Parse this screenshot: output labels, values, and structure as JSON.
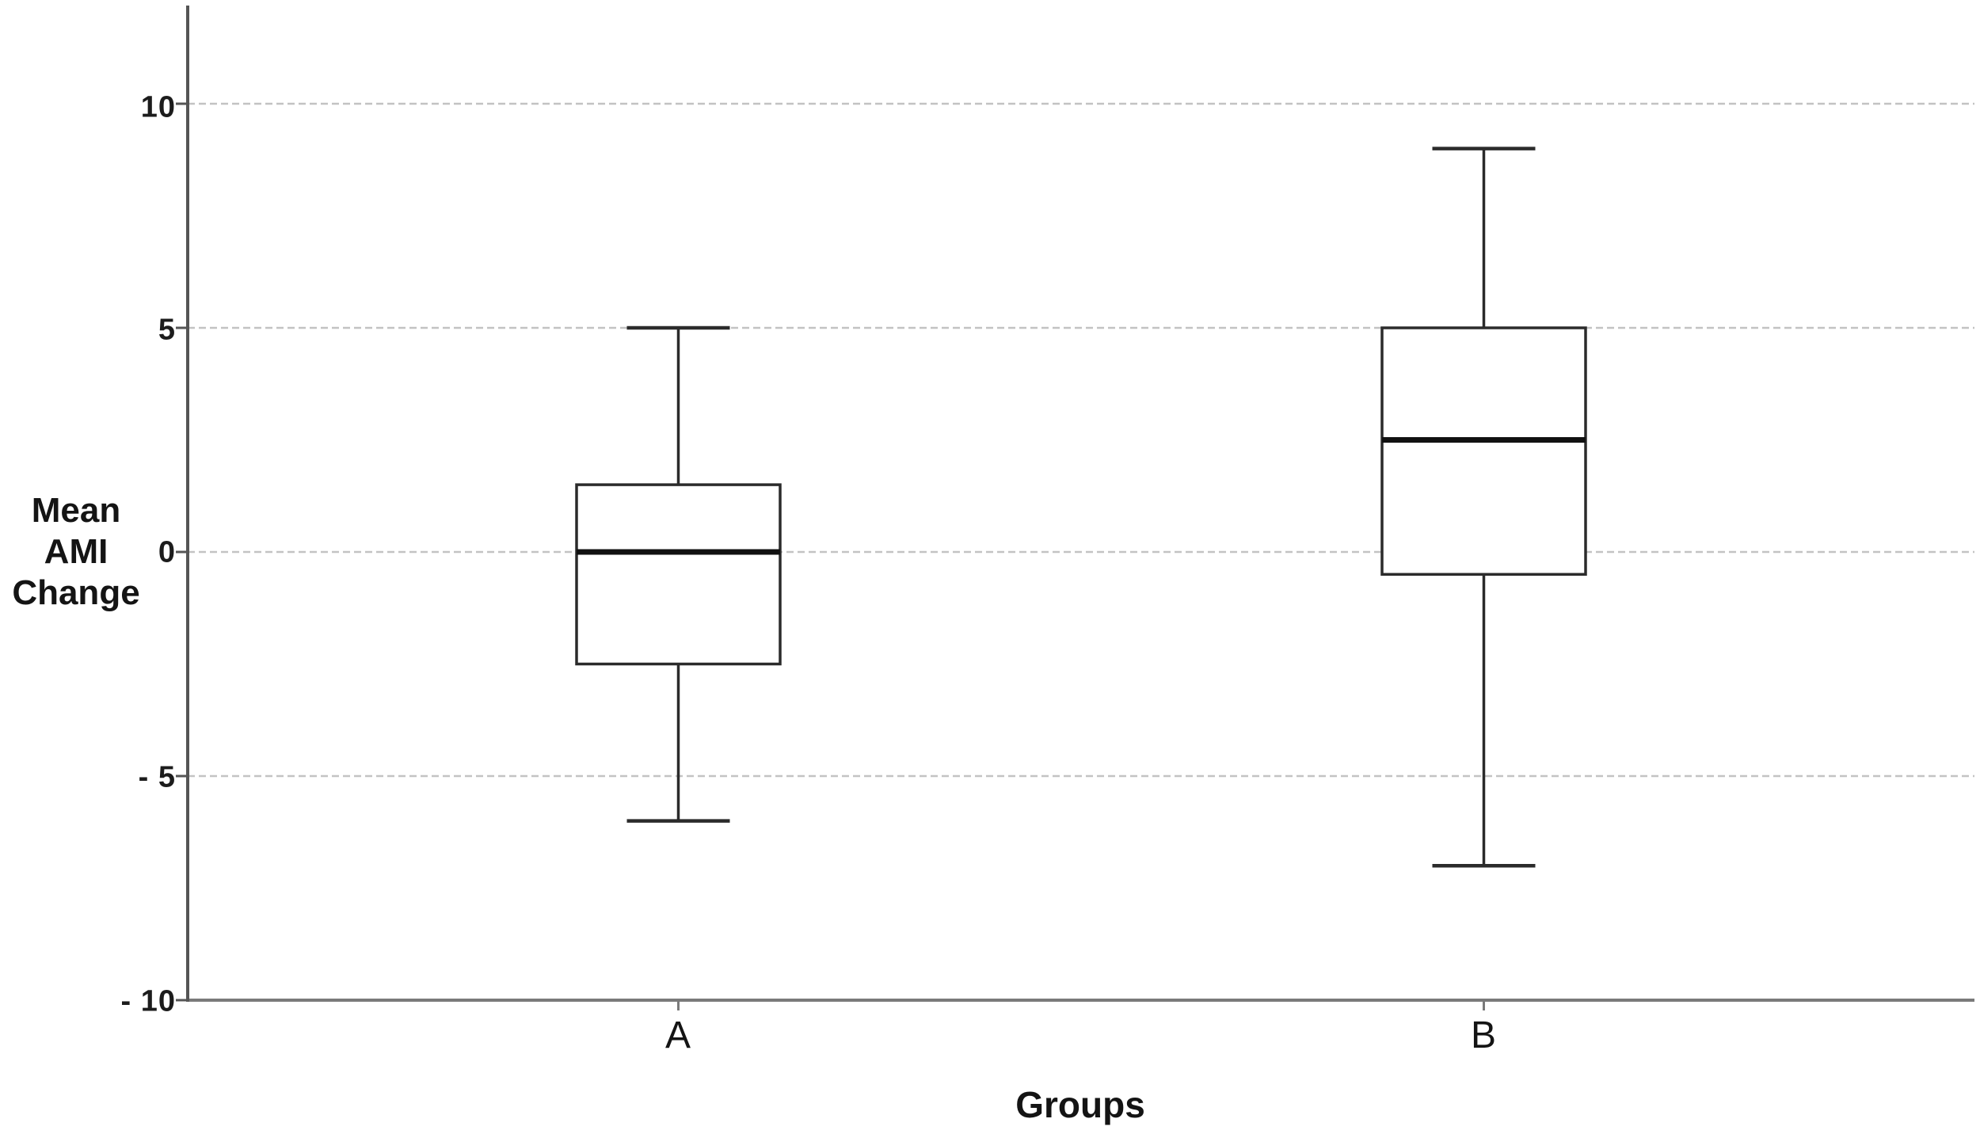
{
  "chart_data": {
    "type": "boxplot",
    "title": "",
    "xlabel": "Groups",
    "ylabel": "Mean AMI Change",
    "ylabel_lines": [
      "Mean",
      "AMI",
      "Change"
    ],
    "categories": [
      "A",
      "B"
    ],
    "y_ticks": [
      {
        "value": 10,
        "label": "10"
      },
      {
        "value": 5,
        "label": "5"
      },
      {
        "value": 0,
        "label": "0"
      },
      {
        "value": -5,
        "label": "- 5"
      },
      {
        "value": -10,
        "label": "- 10"
      }
    ],
    "ylim": [
      -10,
      12.2
    ],
    "grid": true,
    "legend": false,
    "series": [
      {
        "name": "A",
        "whisker_low": -6,
        "q1": -2.5,
        "median": 0,
        "q3": 1.5,
        "whisker_high": 5
      },
      {
        "name": "B",
        "whisker_low": -7,
        "q1": -0.5,
        "median": 2.5,
        "q3": 5,
        "whisker_high": 9
      }
    ]
  },
  "colors": {
    "background": "#ffffff",
    "gridline": "#c3c3c3",
    "y_axis": "#555555",
    "x_axis": "#7a7a7a",
    "box_stroke": "#2b2b2b",
    "median": "#111111",
    "text": "#141414"
  }
}
